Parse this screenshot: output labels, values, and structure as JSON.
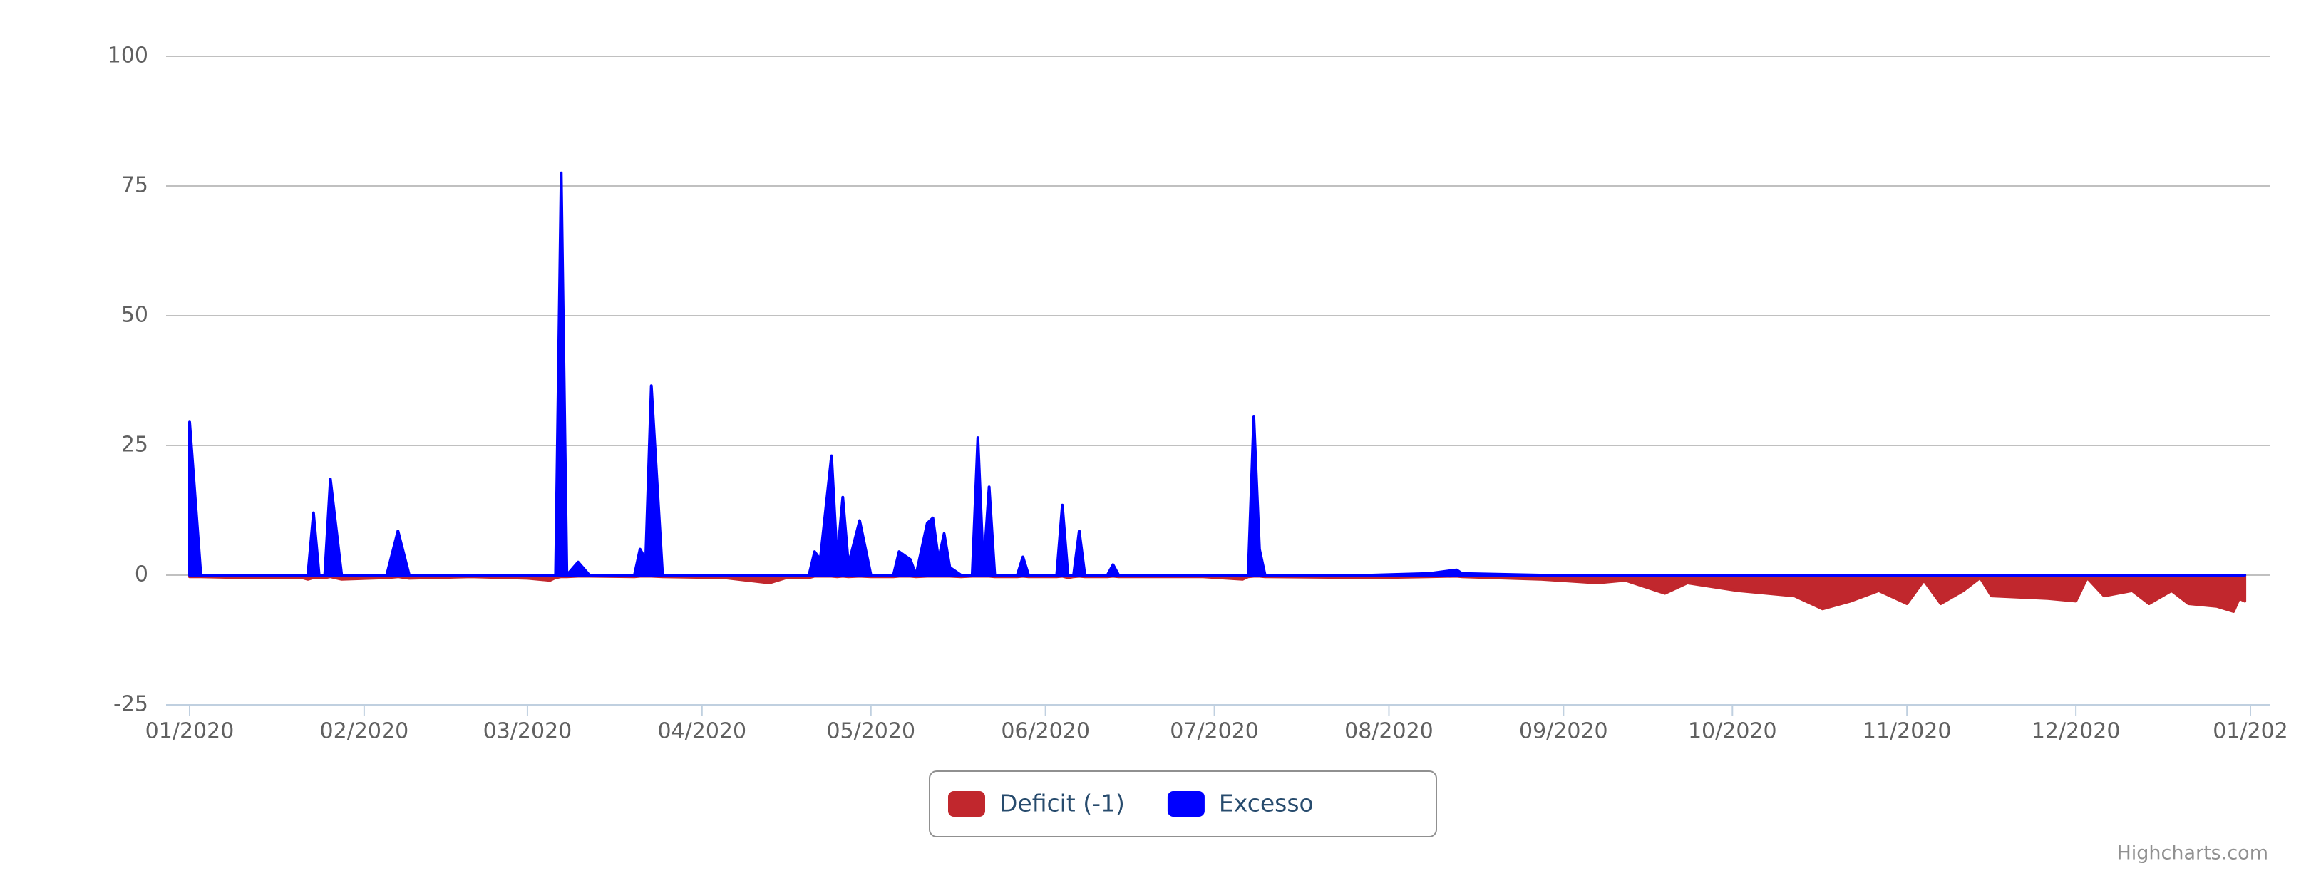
{
  "chart_data": {
    "type": "area",
    "x": [
      0,
      2,
      10,
      20,
      21,
      22,
      23,
      24,
      25,
      27,
      35,
      37,
      39,
      50,
      60,
      64,
      65,
      66,
      67,
      69,
      71,
      79,
      80,
      81,
      82,
      84,
      95,
      103,
      106,
      110,
      111,
      112,
      114,
      115,
      116,
      117,
      119,
      121,
      125,
      126,
      128,
      129,
      131,
      132,
      133,
      134,
      135,
      137,
      139,
      140,
      141,
      142,
      143,
      147,
      148,
      149,
      154,
      155,
      156,
      157,
      158,
      159,
      163,
      164,
      165,
      180,
      187,
      188,
      189,
      190,
      191,
      210,
      220,
      225,
      226,
      240,
      250,
      255,
      262,
      266,
      275,
      285,
      290,
      295,
      300,
      305,
      308,
      311,
      315,
      318,
      320,
      330,
      335,
      337,
      340,
      345,
      348,
      352,
      355,
      360,
      363,
      364,
      365
    ],
    "series": [
      {
        "name": "Deficit (-1)",
        "color": "#c1272d",
        "values": [
          -0.3,
          -0.3,
          -0.5,
          -0.5,
          -0.8,
          -0.5,
          -0.5,
          -0.5,
          -0.3,
          -0.8,
          -0.5,
          -0.3,
          -0.6,
          -0.3,
          -0.6,
          -1,
          -0.5,
          -0.3,
          -0.3,
          -0.2,
          -0.2,
          -0.3,
          -0.2,
          -0.2,
          -0.2,
          -0.3,
          -0.5,
          -1.5,
          -0.5,
          -0.5,
          -0.2,
          -0.2,
          -0.2,
          -0.3,
          -0.2,
          -0.3,
          -0.2,
          -0.3,
          -0.3,
          -0.2,
          -0.2,
          -0.3,
          -0.2,
          -0.2,
          -0.2,
          -0.2,
          -0.2,
          -0.3,
          -0.2,
          -0.2,
          -0.2,
          -0.2,
          -0.3,
          -0.3,
          -0.2,
          -0.3,
          -0.3,
          -0.2,
          -0.5,
          -0.3,
          -0.2,
          -0.3,
          -0.3,
          -0.2,
          -0.3,
          -0.3,
          -0.8,
          -0.3,
          -0.2,
          -0.2,
          -0.3,
          -0.5,
          -0.3,
          -0.2,
          -0.3,
          -0.8,
          -1.5,
          -1,
          -3.5,
          -1.5,
          -3,
          -4,
          -6.5,
          -5,
          -3,
          -5.5,
          -1,
          -5.5,
          -3,
          -0.5,
          -4,
          -4.5,
          -5,
          -0.5,
          -4,
          -3,
          -5.5,
          -3,
          -5.5,
          -6,
          -7,
          -4.5,
          -5
        ]
      },
      {
        "name": "Excesso",
        "color": "#0000ff",
        "values": [
          29.5,
          0,
          0,
          0,
          0,
          12,
          0,
          0,
          18.5,
          0,
          0,
          8.5,
          0,
          0,
          0,
          0,
          0,
          77.5,
          0,
          2.5,
          0,
          0,
          5,
          3,
          36.5,
          0,
          0,
          0,
          0,
          0,
          4.5,
          3,
          23,
          3,
          15,
          2,
          10.5,
          0,
          0,
          4.5,
          3,
          0,
          10,
          11,
          3,
          8,
          1.5,
          0,
          0,
          26.5,
          1,
          17,
          0,
          0,
          3.5,
          0,
          0,
          13.5,
          0,
          0,
          8.5,
          0,
          0,
          2,
          0,
          0,
          0,
          0,
          30.5,
          5,
          0,
          0,
          0.3,
          1,
          0.3,
          0,
          0,
          0,
          0,
          0,
          0,
          0,
          0,
          0,
          0,
          0,
          0,
          0,
          0,
          0,
          0,
          0,
          0,
          0,
          0,
          0,
          0,
          0,
          0,
          0,
          0,
          0,
          0
        ]
      }
    ],
    "xlim": [
      0,
      366
    ],
    "xticks": [
      {
        "value": 0,
        "label": "01/2020"
      },
      {
        "value": 31,
        "label": "02/2020"
      },
      {
        "value": 60,
        "label": "03/2020"
      },
      {
        "value": 91,
        "label": "04/2020"
      },
      {
        "value": 121,
        "label": "05/2020"
      },
      {
        "value": 152,
        "label": "06/2020"
      },
      {
        "value": 182,
        "label": "07/2020"
      },
      {
        "value": 213,
        "label": "08/2020"
      },
      {
        "value": 244,
        "label": "09/2020"
      },
      {
        "value": 274,
        "label": "10/2020"
      },
      {
        "value": 305,
        "label": "11/2020"
      },
      {
        "value": 335,
        "label": "12/2020"
      },
      {
        "value": 366,
        "label": "01/202"
      }
    ],
    "ylim": [
      -25,
      100
    ],
    "yticks": [
      -25,
      0,
      25,
      50,
      75,
      100
    ],
    "grid": true,
    "legend": "bottom",
    "credits": "Highcharts.com"
  }
}
